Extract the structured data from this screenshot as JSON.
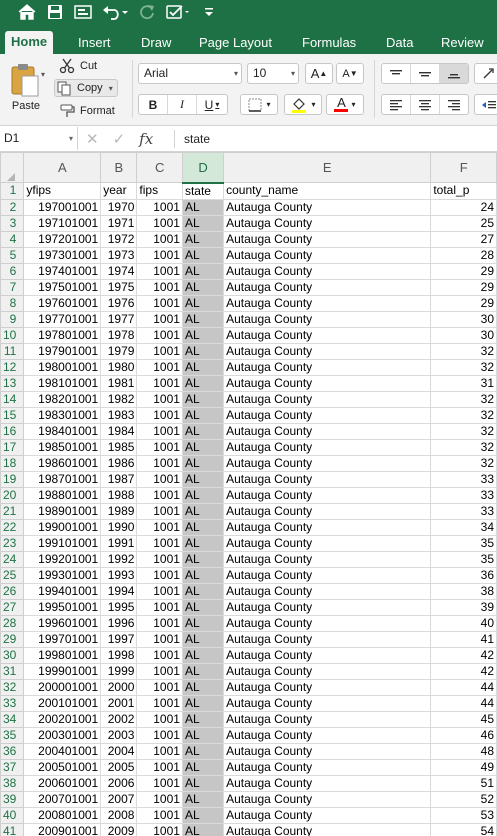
{
  "titlebar": {
    "icons": [
      "home-icon",
      "save-icon",
      "present-icon",
      "undo-icon",
      "redo-icon",
      "edit-checkmark-icon",
      "customize-toolbar-icon"
    ]
  },
  "tabs": [
    "Home",
    "Insert",
    "Draw",
    "Page Layout",
    "Formulas",
    "Data",
    "Review"
  ],
  "active_tab": "Home",
  "ribbon": {
    "paste_label": "Paste",
    "cut_label": "Cut",
    "copy_label": "Copy",
    "format_label": "Format",
    "font_name": "Arial",
    "font_size": "10",
    "bold_label": "B",
    "italic_label": "I",
    "underline_label": "U",
    "grow_font_label": "A",
    "shrink_font_label": "A",
    "font_color_label": "A",
    "fill_color": "#ffff00",
    "font_color": "#ff0000"
  },
  "formula_bar": {
    "name_box": "D1",
    "cancel_symbol": "✕",
    "enter_symbol": "✓",
    "fx_label": "fx",
    "value": "state"
  },
  "accent_color": "#1e7145",
  "columns": [
    "A",
    "B",
    "C",
    "D",
    "E",
    "F"
  ],
  "selected_column": "D",
  "header_row": [
    "yfips",
    "year",
    "fips",
    "state",
    "county_name",
    "total_p"
  ],
  "rows": [
    {
      "n": "2",
      "a": "197001001",
      "b": "1970",
      "c": "1001",
      "d": "AL",
      "e": "Autauga County",
      "f": "24"
    },
    {
      "n": "3",
      "a": "197101001",
      "b": "1971",
      "c": "1001",
      "d": "AL",
      "e": "Autauga County",
      "f": "25"
    },
    {
      "n": "4",
      "a": "197201001",
      "b": "1972",
      "c": "1001",
      "d": "AL",
      "e": "Autauga County",
      "f": "27"
    },
    {
      "n": "5",
      "a": "197301001",
      "b": "1973",
      "c": "1001",
      "d": "AL",
      "e": "Autauga County",
      "f": "28"
    },
    {
      "n": "6",
      "a": "197401001",
      "b": "1974",
      "c": "1001",
      "d": "AL",
      "e": "Autauga County",
      "f": "29"
    },
    {
      "n": "7",
      "a": "197501001",
      "b": "1975",
      "c": "1001",
      "d": "AL",
      "e": "Autauga County",
      "f": "29"
    },
    {
      "n": "8",
      "a": "197601001",
      "b": "1976",
      "c": "1001",
      "d": "AL",
      "e": "Autauga County",
      "f": "29"
    },
    {
      "n": "9",
      "a": "197701001",
      "b": "1977",
      "c": "1001",
      "d": "AL",
      "e": "Autauga County",
      "f": "30"
    },
    {
      "n": "10",
      "a": "197801001",
      "b": "1978",
      "c": "1001",
      "d": "AL",
      "e": "Autauga County",
      "f": "30"
    },
    {
      "n": "11",
      "a": "197901001",
      "b": "1979",
      "c": "1001",
      "d": "AL",
      "e": "Autauga County",
      "f": "32"
    },
    {
      "n": "12",
      "a": "198001001",
      "b": "1980",
      "c": "1001",
      "d": "AL",
      "e": "Autauga County",
      "f": "32"
    },
    {
      "n": "13",
      "a": "198101001",
      "b": "1981",
      "c": "1001",
      "d": "AL",
      "e": "Autauga County",
      "f": "31"
    },
    {
      "n": "14",
      "a": "198201001",
      "b": "1982",
      "c": "1001",
      "d": "AL",
      "e": "Autauga County",
      "f": "32"
    },
    {
      "n": "15",
      "a": "198301001",
      "b": "1983",
      "c": "1001",
      "d": "AL",
      "e": "Autauga County",
      "f": "32"
    },
    {
      "n": "16",
      "a": "198401001",
      "b": "1984",
      "c": "1001",
      "d": "AL",
      "e": "Autauga County",
      "f": "32"
    },
    {
      "n": "17",
      "a": "198501001",
      "b": "1985",
      "c": "1001",
      "d": "AL",
      "e": "Autauga County",
      "f": "32"
    },
    {
      "n": "18",
      "a": "198601001",
      "b": "1986",
      "c": "1001",
      "d": "AL",
      "e": "Autauga County",
      "f": "32"
    },
    {
      "n": "19",
      "a": "198701001",
      "b": "1987",
      "c": "1001",
      "d": "AL",
      "e": "Autauga County",
      "f": "33"
    },
    {
      "n": "20",
      "a": "198801001",
      "b": "1988",
      "c": "1001",
      "d": "AL",
      "e": "Autauga County",
      "f": "33"
    },
    {
      "n": "21",
      "a": "198901001",
      "b": "1989",
      "c": "1001",
      "d": "AL",
      "e": "Autauga County",
      "f": "33"
    },
    {
      "n": "22",
      "a": "199001001",
      "b": "1990",
      "c": "1001",
      "d": "AL",
      "e": "Autauga County",
      "f": "34"
    },
    {
      "n": "23",
      "a": "199101001",
      "b": "1991",
      "c": "1001",
      "d": "AL",
      "e": "Autauga County",
      "f": "35"
    },
    {
      "n": "24",
      "a": "199201001",
      "b": "1992",
      "c": "1001",
      "d": "AL",
      "e": "Autauga County",
      "f": "35"
    },
    {
      "n": "25",
      "a": "199301001",
      "b": "1993",
      "c": "1001",
      "d": "AL",
      "e": "Autauga County",
      "f": "36"
    },
    {
      "n": "26",
      "a": "199401001",
      "b": "1994",
      "c": "1001",
      "d": "AL",
      "e": "Autauga County",
      "f": "38"
    },
    {
      "n": "27",
      "a": "199501001",
      "b": "1995",
      "c": "1001",
      "d": "AL",
      "e": "Autauga County",
      "f": "39"
    },
    {
      "n": "28",
      "a": "199601001",
      "b": "1996",
      "c": "1001",
      "d": "AL",
      "e": "Autauga County",
      "f": "40"
    },
    {
      "n": "29",
      "a": "199701001",
      "b": "1997",
      "c": "1001",
      "d": "AL",
      "e": "Autauga County",
      "f": "41"
    },
    {
      "n": "30",
      "a": "199801001",
      "b": "1998",
      "c": "1001",
      "d": "AL",
      "e": "Autauga County",
      "f": "42"
    },
    {
      "n": "31",
      "a": "199901001",
      "b": "1999",
      "c": "1001",
      "d": "AL",
      "e": "Autauga County",
      "f": "42"
    },
    {
      "n": "32",
      "a": "200001001",
      "b": "2000",
      "c": "1001",
      "d": "AL",
      "e": "Autauga County",
      "f": "44"
    },
    {
      "n": "33",
      "a": "200101001",
      "b": "2001",
      "c": "1001",
      "d": "AL",
      "e": "Autauga County",
      "f": "44"
    },
    {
      "n": "34",
      "a": "200201001",
      "b": "2002",
      "c": "1001",
      "d": "AL",
      "e": "Autauga County",
      "f": "45"
    },
    {
      "n": "35",
      "a": "200301001",
      "b": "2003",
      "c": "1001",
      "d": "AL",
      "e": "Autauga County",
      "f": "46"
    },
    {
      "n": "36",
      "a": "200401001",
      "b": "2004",
      "c": "1001",
      "d": "AL",
      "e": "Autauga County",
      "f": "48"
    },
    {
      "n": "37",
      "a": "200501001",
      "b": "2005",
      "c": "1001",
      "d": "AL",
      "e": "Autauga County",
      "f": "49"
    },
    {
      "n": "38",
      "a": "200601001",
      "b": "2006",
      "c": "1001",
      "d": "AL",
      "e": "Autauga County",
      "f": "51"
    },
    {
      "n": "39",
      "a": "200701001",
      "b": "2007",
      "c": "1001",
      "d": "AL",
      "e": "Autauga County",
      "f": "52"
    },
    {
      "n": "40",
      "a": "200801001",
      "b": "2008",
      "c": "1001",
      "d": "AL",
      "e": "Autauga County",
      "f": "53"
    },
    {
      "n": "41",
      "a": "200901001",
      "b": "2009",
      "c": "1001",
      "d": "AL",
      "e": "Autauga County",
      "f": "54"
    }
  ]
}
